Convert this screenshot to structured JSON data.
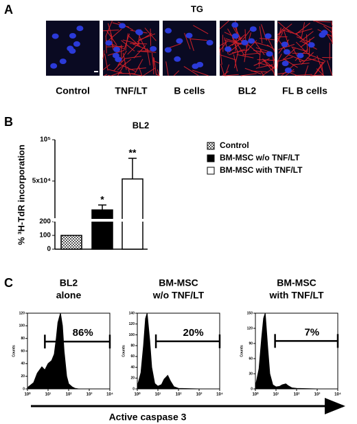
{
  "panel_labels": [
    "A",
    "B",
    "C"
  ],
  "panel_a": {
    "title": "TG",
    "images": [
      {
        "label": "Control"
      },
      {
        "label": "TNF/LT"
      },
      {
        "label": "B cells"
      },
      {
        "label": "BL2"
      },
      {
        "label": "FL B cells"
      }
    ]
  },
  "panel_c": {
    "x_label": "Active caspase 3"
  },
  "chart_data": [
    {
      "type": "bar",
      "title": "BL2",
      "y_label": "% ³H-TdR incorporation",
      "categories": [
        "Control",
        "BM-MSC w/o TNF/LT",
        "BM-MSC with TNF/LT"
      ],
      "values": [
        100,
        15000,
        52500
      ],
      "errors": [
        null,
        6000,
        25000
      ],
      "annotations": [
        null,
        "*",
        "**"
      ],
      "fills": [
        "pattern",
        "#000000",
        "#ffffff"
      ],
      "ysegments": [
        [
          0,
          200
        ],
        [
          5000,
          100000
        ]
      ],
      "yticks": [
        0,
        100,
        200,
        {
          "value": 50000,
          "label": "5x10⁴"
        },
        {
          "value": 100000,
          "label": "10⁵"
        }
      ],
      "legend": "right"
    },
    {
      "type": "area",
      "title": "BL2 alone",
      "y_label": "Counts",
      "log_x": true,
      "color": "#000000",
      "x": [
        1,
        2,
        3,
        5,
        7,
        10,
        15,
        20,
        25,
        30,
        40,
        50,
        60,
        80,
        100,
        150,
        200,
        300,
        500,
        1000,
        10000
      ],
      "values": [
        2,
        10,
        25,
        35,
        30,
        40,
        45,
        55,
        80,
        105,
        120,
        100,
        60,
        20,
        8,
        3,
        1,
        0,
        0,
        0,
        0
      ],
      "xlim": [
        1,
        10000
      ],
      "ylim": [
        0,
        120
      ],
      "xticks": [
        {
          "value": 1,
          "label": "10⁰"
        },
        {
          "value": 10,
          "label": "10¹"
        },
        {
          "value": 100,
          "label": "10²"
        },
        {
          "value": 1000,
          "label": "10³"
        },
        {
          "value": 10000,
          "label": "10⁴"
        }
      ],
      "yticks": [
        0,
        20,
        40,
        60,
        80,
        100,
        120
      ],
      "gate": {
        "range": [
          7,
          10000
        ],
        "level": 75,
        "label": "86%"
      }
    },
    {
      "type": "area",
      "title": "BM-MSC w/o TNF/LT",
      "y_label": "Counts",
      "log_x": true,
      "color": "#000000",
      "x": [
        1,
        1.5,
        2,
        2.5,
        3,
        4,
        5,
        7,
        10,
        15,
        20,
        30,
        40,
        60,
        100,
        1000,
        10000
      ],
      "values": [
        5,
        30,
        80,
        130,
        140,
        90,
        40,
        10,
        5,
        8,
        18,
        25,
        15,
        4,
        1,
        0,
        0
      ],
      "xlim": [
        1,
        10000
      ],
      "ylim": [
        0,
        140
      ],
      "xticks": [
        {
          "value": 1,
          "label": "10⁰"
        },
        {
          "value": 10,
          "label": "10¹"
        },
        {
          "value": 100,
          "label": "10²"
        },
        {
          "value": 1000,
          "label": "10³"
        },
        {
          "value": 10000,
          "label": "10⁴"
        }
      ],
      "yticks": [
        0,
        20,
        40,
        60,
        80,
        100,
        120,
        140
      ],
      "gate": {
        "range": [
          8,
          10000
        ],
        "level": 88,
        "label": "20%"
      }
    },
    {
      "type": "area",
      "title": "BM-MSC with TNF/LT",
      "y_label": "Counts",
      "log_x": true,
      "color": "#000000",
      "x": [
        1,
        1.5,
        2,
        2.5,
        3,
        4,
        5,
        7,
        10,
        15,
        20,
        30,
        40,
        60,
        100,
        1000,
        10000
      ],
      "values": [
        5,
        40,
        100,
        140,
        150,
        80,
        30,
        8,
        4,
        5,
        8,
        10,
        6,
        2,
        1,
        0,
        0
      ],
      "xlim": [
        1,
        10000
      ],
      "ylim": [
        0,
        150
      ],
      "xticks": [
        {
          "value": 1,
          "label": "10⁰"
        },
        {
          "value": 10,
          "label": "10¹"
        },
        {
          "value": 100,
          "label": "10²"
        },
        {
          "value": 1000,
          "label": "10³"
        },
        {
          "value": 10000,
          "label": "10⁴"
        }
      ],
      "yticks": [
        0,
        30,
        60,
        90,
        120,
        150
      ],
      "gate": {
        "range": [
          9,
          10000
        ],
        "level": 95,
        "label": "7%"
      }
    }
  ]
}
